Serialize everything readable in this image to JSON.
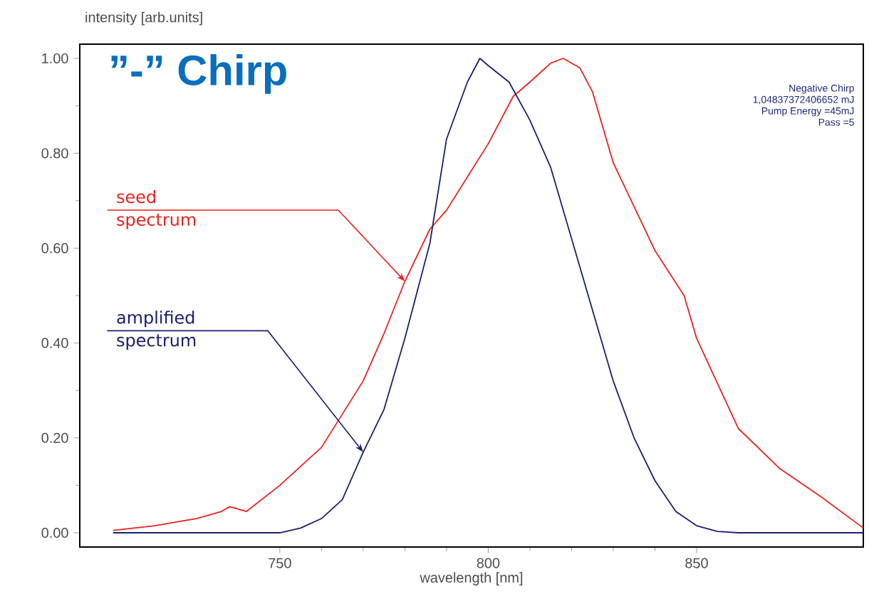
{
  "chart_data": {
    "type": "line",
    "title": "”-” Chirp",
    "xlabel": "wavelength [nm]",
    "ylabel": "intensity [arb.units]",
    "xlim": [
      702,
      890
    ],
    "ylim": [
      -0.03,
      1.03
    ],
    "xticks": [
      750,
      800,
      850
    ],
    "yticks": [
      {
        "value": 0,
        "label": "0.00"
      },
      {
        "value": 0.2,
        "label": "0.20"
      },
      {
        "value": 0.4,
        "label": "0.40"
      },
      {
        "value": 0.6,
        "label": "0.60"
      },
      {
        "value": 0.8,
        "label": "0.80"
      },
      {
        "value": 1.0,
        "label": "1.00"
      }
    ],
    "grid": false,
    "annotations": [
      "Negative Chirp",
      "1,04837372406652 mJ",
      "Pump Energy =45mJ",
      "Pass =5"
    ],
    "series": [
      {
        "name": "seed spectrum",
        "color": "#e8231e",
        "x": [
          710,
          720,
          730,
          736,
          738,
          742,
          750,
          760,
          770,
          775,
          780,
          786,
          790,
          800,
          806,
          810,
          815,
          818,
          822,
          825,
          830,
          840,
          847,
          850,
          860,
          870,
          880,
          890
        ],
        "values": [
          0.005,
          0.015,
          0.03,
          0.045,
          0.055,
          0.045,
          0.1,
          0.18,
          0.32,
          0.42,
          0.53,
          0.64,
          0.68,
          0.82,
          0.92,
          0.95,
          0.99,
          1.0,
          0.98,
          0.93,
          0.78,
          0.595,
          0.5,
          0.41,
          0.22,
          0.135,
          0.075,
          0.01
        ]
      },
      {
        "name": "amplified spectrum",
        "color": "#1a1f6e",
        "x": [
          710,
          730,
          750,
          755,
          760,
          765,
          770,
          775,
          780,
          786,
          790,
          795,
          798,
          800,
          805,
          810,
          815,
          820,
          825,
          830,
          835,
          840,
          845,
          850,
          855,
          860,
          890
        ],
        "values": [
          0,
          0,
          0,
          0.01,
          0.03,
          0.07,
          0.17,
          0.26,
          0.41,
          0.61,
          0.83,
          0.95,
          1.0,
          0.985,
          0.95,
          0.87,
          0.77,
          0.62,
          0.47,
          0.32,
          0.2,
          0.11,
          0.045,
          0.015,
          0.003,
          0,
          0
        ]
      }
    ]
  }
}
